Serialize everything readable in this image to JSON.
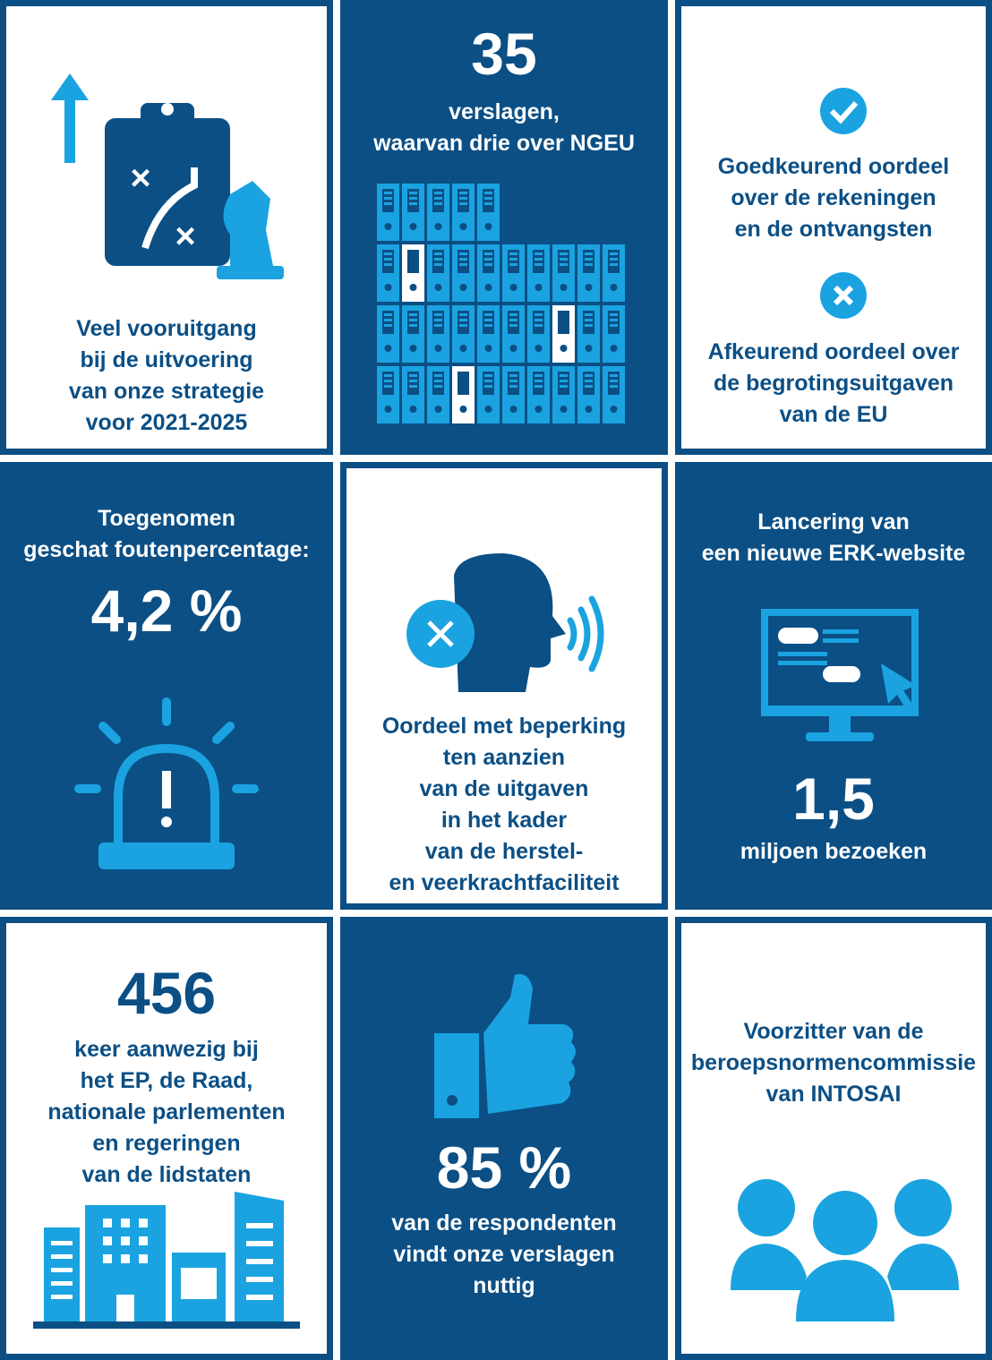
{
  "tiles": [
    {
      "caption": [
        "Veel vooruitgang",
        "bij de uitvoering",
        "van onze strategie",
        "voor 2021-2025"
      ]
    },
    {
      "number": "35",
      "caption": [
        "verslagen,",
        "waarvan drie over NGEU"
      ]
    },
    {
      "items": [
        {
          "text": [
            "Goedkeurend oordeel",
            "over de rekeningen",
            "en de ontvangsten"
          ]
        },
        {
          "text": [
            "Afkeurend oordeel over",
            "de begrotingsuitgaven",
            "van de EU"
          ]
        }
      ]
    },
    {
      "heading": [
        "Toegenomen",
        "geschat foutenpercentage:"
      ],
      "number": "4,2 %"
    },
    {
      "caption": [
        "Oordeel met beperking",
        "ten aanzien",
        "van de uitgaven",
        "in het kader",
        "van de herstel-",
        "en veerkrachtfaciliteit"
      ]
    },
    {
      "heading": [
        "Lancering van",
        "een nieuwe ERK-website"
      ],
      "number": "1,5",
      "caption": [
        "miljoen bezoeken"
      ]
    },
    {
      "number": "456",
      "caption": [
        "keer aanwezig bij",
        "het EP, de Raad,",
        "nationale parlementen",
        "en regeringen",
        "van de lidstaten"
      ]
    },
    {
      "number": "85 %",
      "caption": [
        "van de respondenten",
        "vindt onze verslagen",
        "nuttig"
      ]
    },
    {
      "caption": [
        "Voorzitter van de",
        "beroepsnormencommissie",
        "van INTOSAI"
      ]
    }
  ]
}
